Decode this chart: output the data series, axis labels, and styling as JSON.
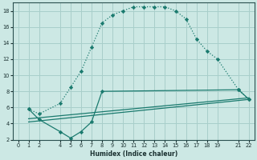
{
  "background_color": "#cce8e4",
  "grid_color": "#a8ceca",
  "line_color": "#1a7a6e",
  "xlabel": "Humidex (Indice chaleur)",
  "curve1_x": [
    1,
    2,
    4,
    5,
    6,
    7,
    8,
    9,
    10,
    11,
    12,
    13,
    14,
    15,
    16,
    17,
    18,
    19,
    21,
    22
  ],
  "curve1_y": [
    5.8,
    5.2,
    6.5,
    8.5,
    10.5,
    13.5,
    16.5,
    17.5,
    18.0,
    18.5,
    18.5,
    18.5,
    18.5,
    18.0,
    17.0,
    14.5,
    13.0,
    12.0,
    8.2,
    7.0
  ],
  "curve2_x": [
    1,
    2,
    4,
    5,
    6,
    7,
    8,
    21,
    22
  ],
  "curve2_y": [
    5.8,
    4.5,
    3.0,
    2.2,
    3.0,
    4.2,
    8.0,
    8.2,
    7.0
  ],
  "curve3_x": [
    1,
    22
  ],
  "curve3_y": [
    4.6,
    7.2
  ],
  "curve4_x": [
    1,
    22
  ],
  "curve4_y": [
    4.2,
    7.0
  ],
  "xlim": [
    -0.5,
    22.5
  ],
  "ylim": [
    2,
    19
  ],
  "xticks": [
    0,
    1,
    2,
    4,
    5,
    6,
    7,
    8,
    9,
    10,
    11,
    12,
    13,
    14,
    15,
    16,
    17,
    18,
    19,
    21,
    22
  ],
  "yticks": [
    2,
    4,
    6,
    8,
    10,
    12,
    14,
    16,
    18
  ]
}
